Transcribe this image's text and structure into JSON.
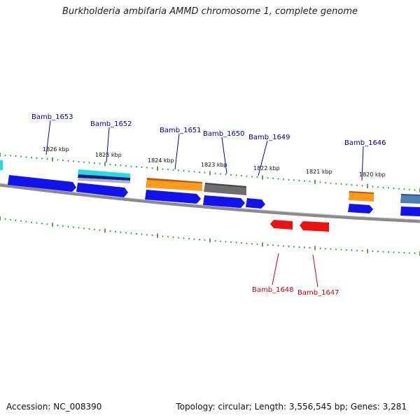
{
  "title": "Burkholderia ambifaria AMMD chromosome 1, complete genome",
  "footer": {
    "accession": "Accession: NC_008390",
    "topology": "Topology: circular; Length: 3,556,545 bp; Genes: 3,281"
  },
  "colors": {
    "backbone": "#808080",
    "ticks": "#2e8b2e",
    "label_forward": "#0000aa",
    "label_reverse": "#cc0000",
    "gene_blue": "#1010ee",
    "gene_orange": "#ff9a1a",
    "gene_gray": "#6e6e6e",
    "gene_cyan": "#22dddd",
    "gene_red": "#ee1111",
    "gene_steel": "#4a7fb5"
  },
  "kbp_labels": [
    "1826 kbp",
    "1825 kbp",
    "1824 kbp",
    "1823 kbp",
    "1822 kbp",
    "1821 kbp",
    "1820 kbp"
  ],
  "gene_labels": {
    "forward": [
      "Bamb_1653",
      "Bamb_1652",
      "Bamb_1651",
      "Bamb_1650",
      "Bamb_1649",
      "Bamb_1646"
    ],
    "reverse": [
      "Bamb_1648",
      "Bamb_1647"
    ]
  }
}
